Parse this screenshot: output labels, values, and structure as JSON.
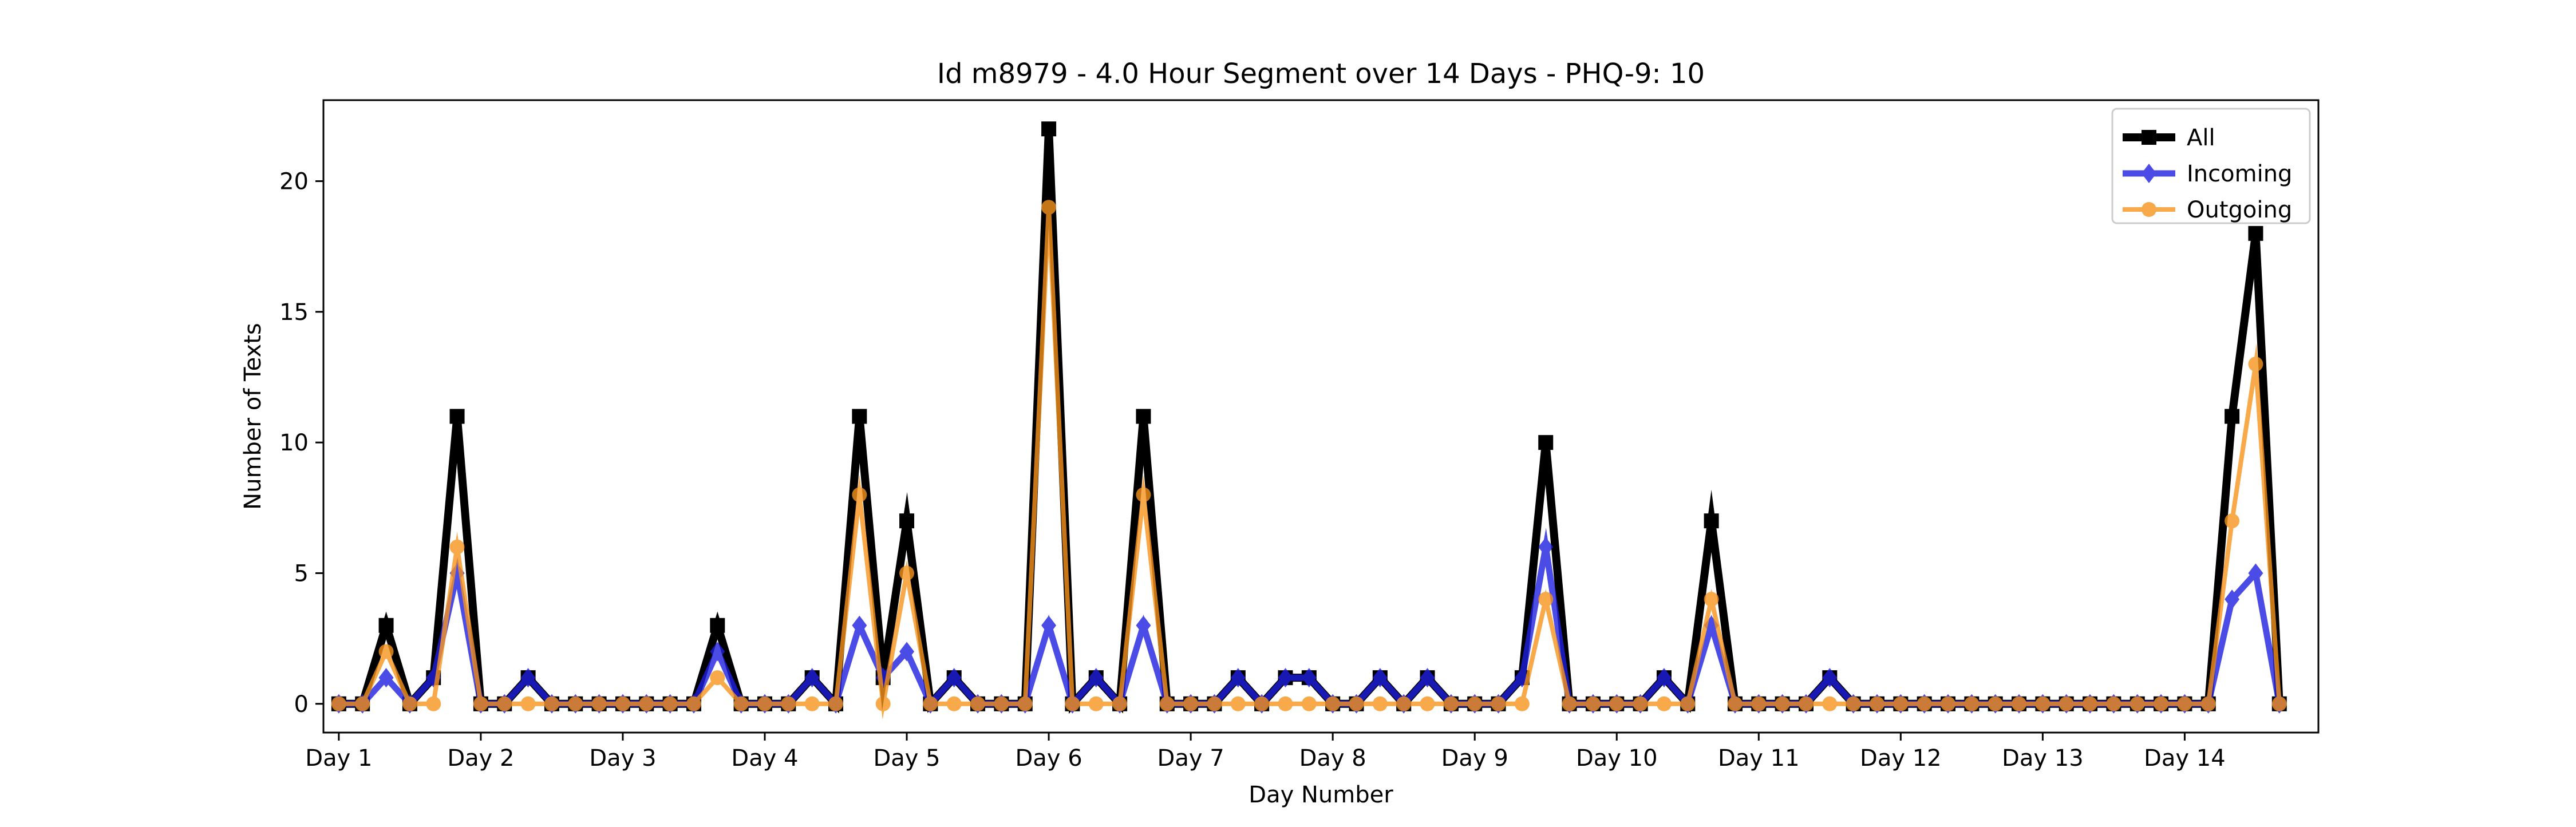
{
  "chart_data": {
    "type": "line",
    "title": "Id m8979 - 4.0 Hour Segment over 14 Days - PHQ-9: 10",
    "xlabel": "Day Number",
    "ylabel": "Number of Texts",
    "x_tick_labels": [
      "Day 1",
      "Day 2",
      "Day 3",
      "Day 4",
      "Day 5",
      "Day 6",
      "Day 7",
      "Day 8",
      "Day 9",
      "Day 10",
      "Day 11",
      "Day 12",
      "Day 13",
      "Day 14"
    ],
    "y_ticks": [
      0,
      5,
      10,
      15,
      20
    ],
    "ylim": [
      -1.1,
      23.1
    ],
    "xlim": [
      -0.65,
      83.65
    ],
    "grid": false,
    "legend_position": "top-right",
    "series": [
      {
        "name": "All",
        "color": "#000000",
        "marker": "square",
        "values": [
          0,
          0,
          3,
          0,
          1,
          11,
          0,
          0,
          1,
          0,
          0,
          0,
          0,
          0,
          0,
          0,
          3,
          0,
          0,
          0,
          1,
          0,
          11,
          1,
          7,
          0,
          1,
          0,
          0,
          0,
          22,
          0,
          1,
          0,
          11,
          0,
          0,
          0,
          1,
          0,
          1,
          1,
          0,
          0,
          1,
          0,
          1,
          0,
          0,
          0,
          1,
          10,
          0,
          0,
          0,
          0,
          1,
          0,
          7,
          0,
          0,
          0,
          0,
          1,
          0,
          0,
          0,
          0,
          0,
          0,
          0,
          0,
          0,
          0,
          0,
          0,
          0,
          0,
          0,
          0,
          11,
          18,
          0
        ]
      },
      {
        "name": "Incoming",
        "color": "#1f1fe0",
        "marker": "diamond",
        "values": [
          0,
          0,
          1,
          0,
          1,
          5,
          0,
          0,
          1,
          0,
          0,
          0,
          0,
          0,
          0,
          0,
          2,
          0,
          0,
          0,
          1,
          0,
          3,
          1,
          2,
          0,
          1,
          0,
          0,
          0,
          3,
          0,
          1,
          0,
          3,
          0,
          0,
          0,
          1,
          0,
          1,
          1,
          0,
          0,
          1,
          0,
          1,
          0,
          0,
          0,
          1,
          6,
          0,
          0,
          0,
          0,
          1,
          0,
          3,
          0,
          0,
          0,
          0,
          1,
          0,
          0,
          0,
          0,
          0,
          0,
          0,
          0,
          0,
          0,
          0,
          0,
          0,
          0,
          0,
          0,
          4,
          5,
          0
        ]
      },
      {
        "name": "Outgoing",
        "color": "#f7941d",
        "marker": "circle",
        "values": [
          0,
          0,
          2,
          0,
          0,
          6,
          0,
          0,
          0,
          0,
          0,
          0,
          0,
          0,
          0,
          0,
          1,
          0,
          0,
          0,
          0,
          0,
          8,
          0,
          5,
          0,
          0,
          0,
          0,
          0,
          19,
          0,
          0,
          0,
          8,
          0,
          0,
          0,
          0,
          0,
          0,
          0,
          0,
          0,
          0,
          0,
          0,
          0,
          0,
          0,
          0,
          4,
          0,
          0,
          0,
          0,
          0,
          0,
          4,
          0,
          0,
          0,
          0,
          0,
          0,
          0,
          0,
          0,
          0,
          0,
          0,
          0,
          0,
          0,
          0,
          0,
          0,
          0,
          0,
          0,
          7,
          13,
          0
        ]
      }
    ]
  }
}
